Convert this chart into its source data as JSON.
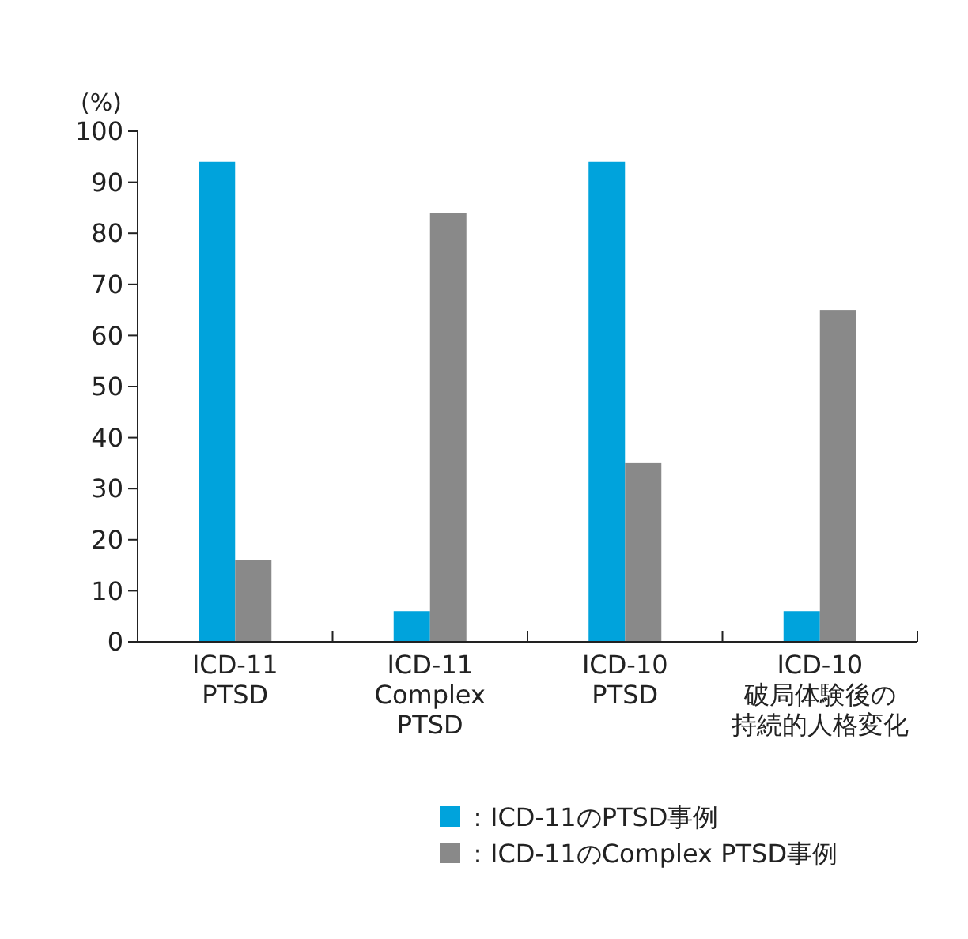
{
  "chart_data": {
    "type": "bar",
    "ylabel": "(%)",
    "categories": [
      "ICD-11\nPTSD",
      "ICD-11\nComplex\nPTSD",
      "ICD-10\nPTSD",
      "ICD-10\n破局体験後の持続的人格変化"
    ],
    "series": [
      {
        "name": "：ICD-11のPTSD事例",
        "color": "#00a3dc",
        "values": [
          94,
          6,
          94,
          6
        ]
      },
      {
        "name": "：ICD-11のComplex PTSD事例",
        "color": "#898989",
        "values": [
          16,
          84,
          35,
          65
        ]
      }
    ],
    "ylim": [
      0,
      100
    ],
    "yticks": [
      0,
      10,
      20,
      30,
      40,
      50,
      60,
      70,
      80,
      90,
      100
    ],
    "grid": false,
    "legend": "bottom"
  }
}
